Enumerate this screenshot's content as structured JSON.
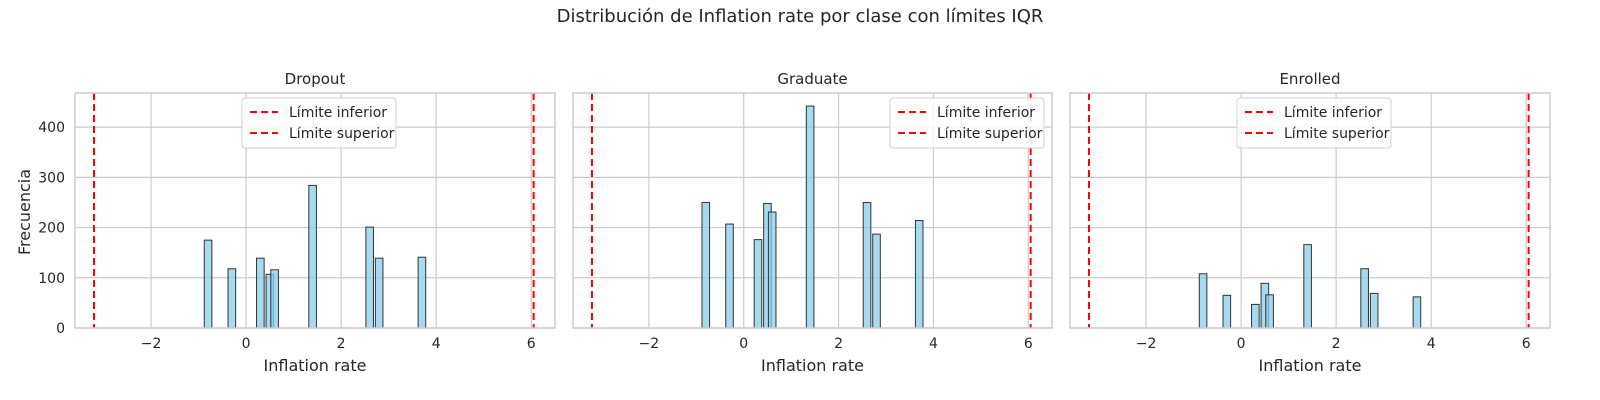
{
  "figure": {
    "suptitle": "Distribución de Inflation rate por clase con límites IQR",
    "ylabel": "Frecuencia"
  },
  "colors": {
    "bar_fill": "#87CEEB",
    "bar_edge": "#000000",
    "limit_line": "#FF0000",
    "grid": "#CCCCCC",
    "spine": "#CCCCCC"
  },
  "legend": {
    "lower_label": "Límite inferior",
    "upper_label": "Límite superior"
  },
  "chart_data": [
    {
      "type": "bar",
      "title": "Dropout",
      "xlabel": "Inflation rate",
      "ylabel": "Frecuencia",
      "xlim": [
        -3.6,
        6.5
      ],
      "ylim": [
        0,
        468
      ],
      "xticks": [
        -2,
        0,
        2,
        4,
        6
      ],
      "yticks": [
        0,
        100,
        200,
        300,
        400
      ],
      "bin_width": 0.16,
      "grid": true,
      "legend_position": "upper-center",
      "lower_limit": -3.2,
      "upper_limit": 6.05,
      "bins": [
        {
          "x": -0.8,
          "count": 175
        },
        {
          "x": -0.3,
          "count": 118
        },
        {
          "x": 0.3,
          "count": 139
        },
        {
          "x": 0.5,
          "count": 107
        },
        {
          "x": 0.6,
          "count": 116
        },
        {
          "x": 1.4,
          "count": 284
        },
        {
          "x": 2.6,
          "count": 201
        },
        {
          "x": 2.8,
          "count": 139
        },
        {
          "x": 3.7,
          "count": 141
        }
      ]
    },
    {
      "type": "bar",
      "title": "Graduate",
      "xlabel": "Inflation rate",
      "xlim": [
        -3.6,
        6.5
      ],
      "ylim": [
        0,
        468
      ],
      "xticks": [
        -2,
        0,
        2,
        4,
        6
      ],
      "yticks": [
        0,
        100,
        200,
        300,
        400
      ],
      "bin_width": 0.16,
      "grid": true,
      "legend_position": "upper-right",
      "lower_limit": -3.2,
      "upper_limit": 6.05,
      "bins": [
        {
          "x": -0.8,
          "count": 250
        },
        {
          "x": -0.3,
          "count": 207
        },
        {
          "x": 0.3,
          "count": 176
        },
        {
          "x": 0.5,
          "count": 248
        },
        {
          "x": 0.6,
          "count": 231
        },
        {
          "x": 1.4,
          "count": 442
        },
        {
          "x": 2.6,
          "count": 250
        },
        {
          "x": 2.8,
          "count": 187
        },
        {
          "x": 3.7,
          "count": 214
        }
      ]
    },
    {
      "type": "bar",
      "title": "Enrolled",
      "xlabel": "Inflation rate",
      "xlim": [
        -3.6,
        6.5
      ],
      "ylim": [
        0,
        468
      ],
      "xticks": [
        -2,
        0,
        2,
        4,
        6
      ],
      "yticks": [
        0,
        100,
        200,
        300,
        400
      ],
      "bin_width": 0.16,
      "grid": true,
      "legend_position": "upper-center",
      "lower_limit": -3.2,
      "upper_limit": 6.05,
      "bins": [
        {
          "x": -0.8,
          "count": 108
        },
        {
          "x": -0.3,
          "count": 65
        },
        {
          "x": 0.3,
          "count": 47
        },
        {
          "x": 0.5,
          "count": 89
        },
        {
          "x": 0.6,
          "count": 66
        },
        {
          "x": 1.4,
          "count": 166
        },
        {
          "x": 2.6,
          "count": 118
        },
        {
          "x": 2.8,
          "count": 69
        },
        {
          "x": 3.7,
          "count": 62
        }
      ]
    }
  ]
}
